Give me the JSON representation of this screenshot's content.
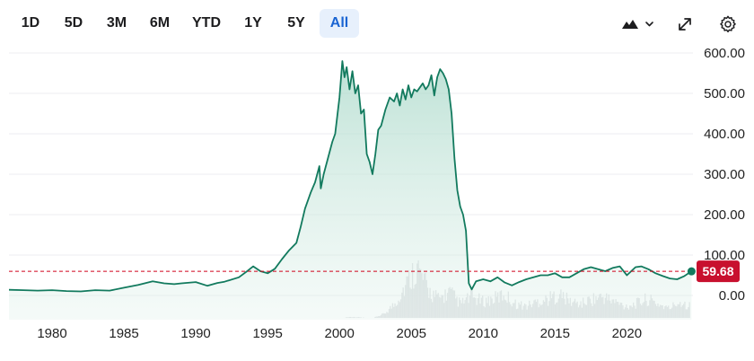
{
  "range_tabs": [
    "1D",
    "5D",
    "3M",
    "6M",
    "YTD",
    "1Y",
    "5Y",
    "All"
  ],
  "active_range": "All",
  "toolbar_icons": [
    "area-chart-type-icon",
    "chevron-down-icon",
    "expand-icon",
    "gear-icon"
  ],
  "colors": {
    "line": "#127a5e",
    "area_top": "#a8d8c8",
    "last_price_box": "#c8102e",
    "last_price_line": "#d0021b",
    "volume": "#d9dcdf",
    "active_tab_bg": "#e7f0fc",
    "active_tab_text": "#1a64d2"
  },
  "chart_data": {
    "type": "area",
    "title": "",
    "xlabel": "",
    "ylabel": "",
    "xlim": [
      1977,
      2024.6
    ],
    "ylim": [
      -60,
      620
    ],
    "y_axis_position": "right",
    "grid": "horizontal",
    "x_ticks": [
      1980,
      1985,
      1990,
      1995,
      2000,
      2005,
      2010,
      2015,
      2020
    ],
    "y_ticks": [
      0,
      100,
      200,
      300,
      400,
      500,
      600
    ],
    "y_tick_labels": [
      "0.00",
      "100.00",
      "200.00",
      "300.00",
      "400.00",
      "500.00",
      "600.00"
    ],
    "last_price": 59.68,
    "last_price_label": "59.68",
    "series": [
      {
        "x": [
          1977.0,
          1978.0,
          1979.0,
          1980.0,
          1981.0,
          1982.0,
          1983.0,
          1984.0,
          1985.0,
          1986.0,
          1987.0,
          1987.8,
          1988.5,
          1989.0,
          1990.0,
          1990.8,
          1991.5,
          1992.0,
          1993.0,
          1993.5,
          1994.0,
          1994.5,
          1995.0,
          1995.5,
          1996.0,
          1996.5,
          1997.0,
          1997.3,
          1997.6,
          1998.0,
          1998.3,
          1998.6,
          1998.7,
          1998.9,
          1999.2,
          1999.5,
          1999.7,
          2000.0,
          2000.2,
          2000.35,
          2000.5,
          2000.7,
          2000.9,
          2001.1,
          2001.3,
          2001.5,
          2001.7,
          2001.9,
          2002.1,
          2002.3,
          2002.5,
          2002.7,
          2002.9,
          2003.2,
          2003.5,
          2003.8,
          2004.0,
          2004.2,
          2004.4,
          2004.6,
          2004.8,
          2005.0,
          2005.2,
          2005.4,
          2005.6,
          2005.8,
          2006.0,
          2006.2,
          2006.4,
          2006.6,
          2006.8,
          2007.0,
          2007.2,
          2007.4,
          2007.6,
          2007.8,
          2008.0,
          2008.2,
          2008.4,
          2008.6,
          2008.8,
          2009.0,
          2009.2,
          2009.5,
          2010.0,
          2010.5,
          2011.0,
          2011.5,
          2012.0,
          2012.5,
          2013.0,
          2013.5,
          2014.0,
          2014.5,
          2015.0,
          2015.5,
          2016.0,
          2016.5,
          2017.0,
          2017.5,
          2018.0,
          2018.5,
          2019.0,
          2019.5,
          2020.0,
          2020.3,
          2020.6,
          2021.0,
          2021.5,
          2022.0,
          2022.5,
          2023.0,
          2023.5,
          2024.0,
          2024.5
        ],
        "y": [
          14,
          13,
          12,
          13,
          11,
          10,
          13,
          12,
          19,
          26,
          35,
          30,
          28,
          30,
          33,
          24,
          31,
          34,
          45,
          58,
          72,
          60,
          55,
          66,
          90,
          112,
          130,
          170,
          215,
          255,
          280,
          320,
          265,
          300,
          340,
          380,
          400,
          490,
          580,
          540,
          565,
          510,
          555,
          500,
          520,
          450,
          460,
          350,
          330,
          300,
          350,
          410,
          420,
          460,
          490,
          480,
          500,
          470,
          510,
          485,
          520,
          490,
          510,
          505,
          515,
          525,
          510,
          520,
          545,
          495,
          540,
          560,
          550,
          535,
          510,
          450,
          340,
          260,
          220,
          200,
          160,
          30,
          15,
          35,
          40,
          35,
          45,
          32,
          25,
          33,
          40,
          45,
          50,
          50,
          55,
          45,
          45,
          55,
          65,
          70,
          65,
          60,
          68,
          72,
          50,
          60,
          70,
          72,
          65,
          55,
          48,
          42,
          40,
          48,
          60
        ]
      }
    ],
    "volume_y": [
      0,
      2,
      1,
      0,
      8,
      30,
      70,
      110,
      60,
      40,
      55,
      30,
      45,
      35,
      40,
      50,
      30,
      25,
      35,
      40,
      50,
      35,
      30,
      40,
      45,
      35,
      25,
      30,
      40,
      30,
      20,
      35,
      25
    ]
  }
}
